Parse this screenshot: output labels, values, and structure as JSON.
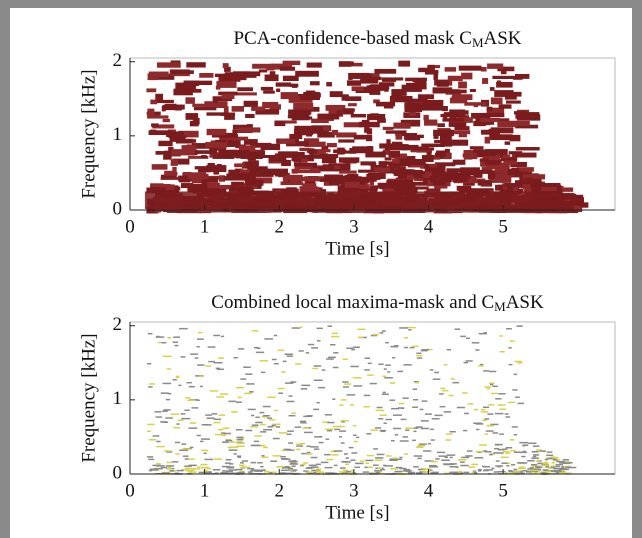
{
  "chart_data": [
    {
      "type": "mask",
      "title": [
        "PCA-confidence-based mask C",
        "M",
        "ASK"
      ],
      "xlabel": "Time [s]",
      "ylabel": "Frequency [kHz]",
      "xlim": [
        0,
        6.5
      ],
      "xticks": [
        0,
        1,
        2,
        3,
        4,
        5
      ],
      "ylim": [
        0,
        2.05
      ],
      "yticks": [
        0,
        1,
        2
      ],
      "colors": [
        "#7a1b1d",
        "#8e2a2c"
      ]
    },
    {
      "type": "mask",
      "title": [
        "Combined local maxima-mask and C",
        "M",
        "ASK"
      ],
      "xlabel": "Time [s]",
      "ylabel": "Frequency [kHz]",
      "xlim": [
        0,
        6.5
      ],
      "xticks": [
        0,
        1,
        2,
        3,
        4,
        5
      ],
      "ylim": [
        0,
        2.05
      ],
      "yticks": [
        0,
        1,
        2
      ],
      "colors": [
        "#8a8a8a",
        "#d8d24a"
      ]
    }
  ]
}
